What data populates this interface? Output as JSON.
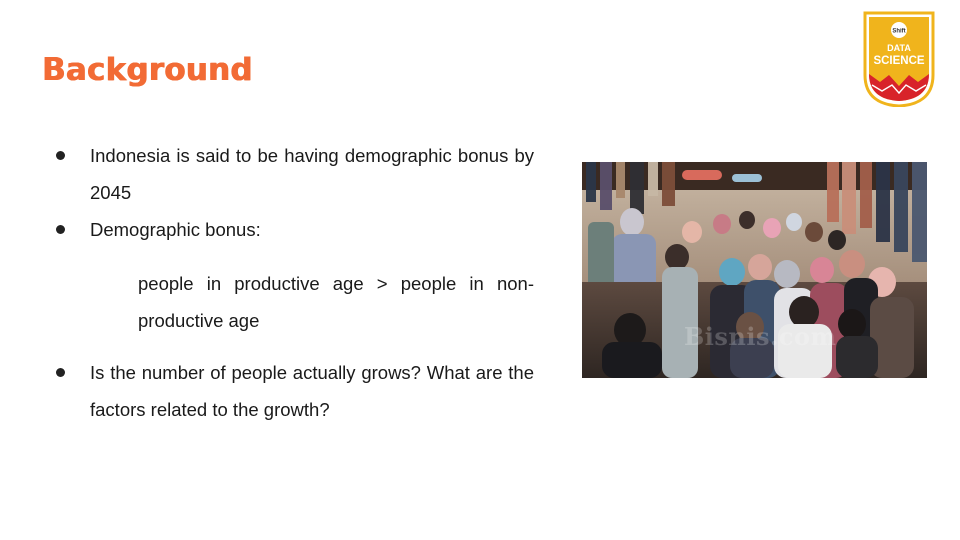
{
  "slide": {
    "title": "Background",
    "bullets": [
      {
        "text": "Indonesia is said to be having demographic bonus by 2045"
      },
      {
        "text": "Demographic  bonus:"
      },
      {
        "text": "people in productive age > people in non-productive age",
        "sub": true
      },
      {
        "text": "Is the number of people actually grows? What are the factors related to the growth?"
      }
    ]
  },
  "logo": {
    "brand_small": "Shift",
    "line1": "DATA",
    "line2": "SCIENCE",
    "colors": {
      "gold": "#f0b41c",
      "red": "#d8232a",
      "white": "#ffffff"
    }
  },
  "photo": {
    "description_icon": "crowd-photo",
    "watermark": "Bisnis.com"
  },
  "colors": {
    "title": "#f26b35",
    "text": "#1a1a1a"
  }
}
